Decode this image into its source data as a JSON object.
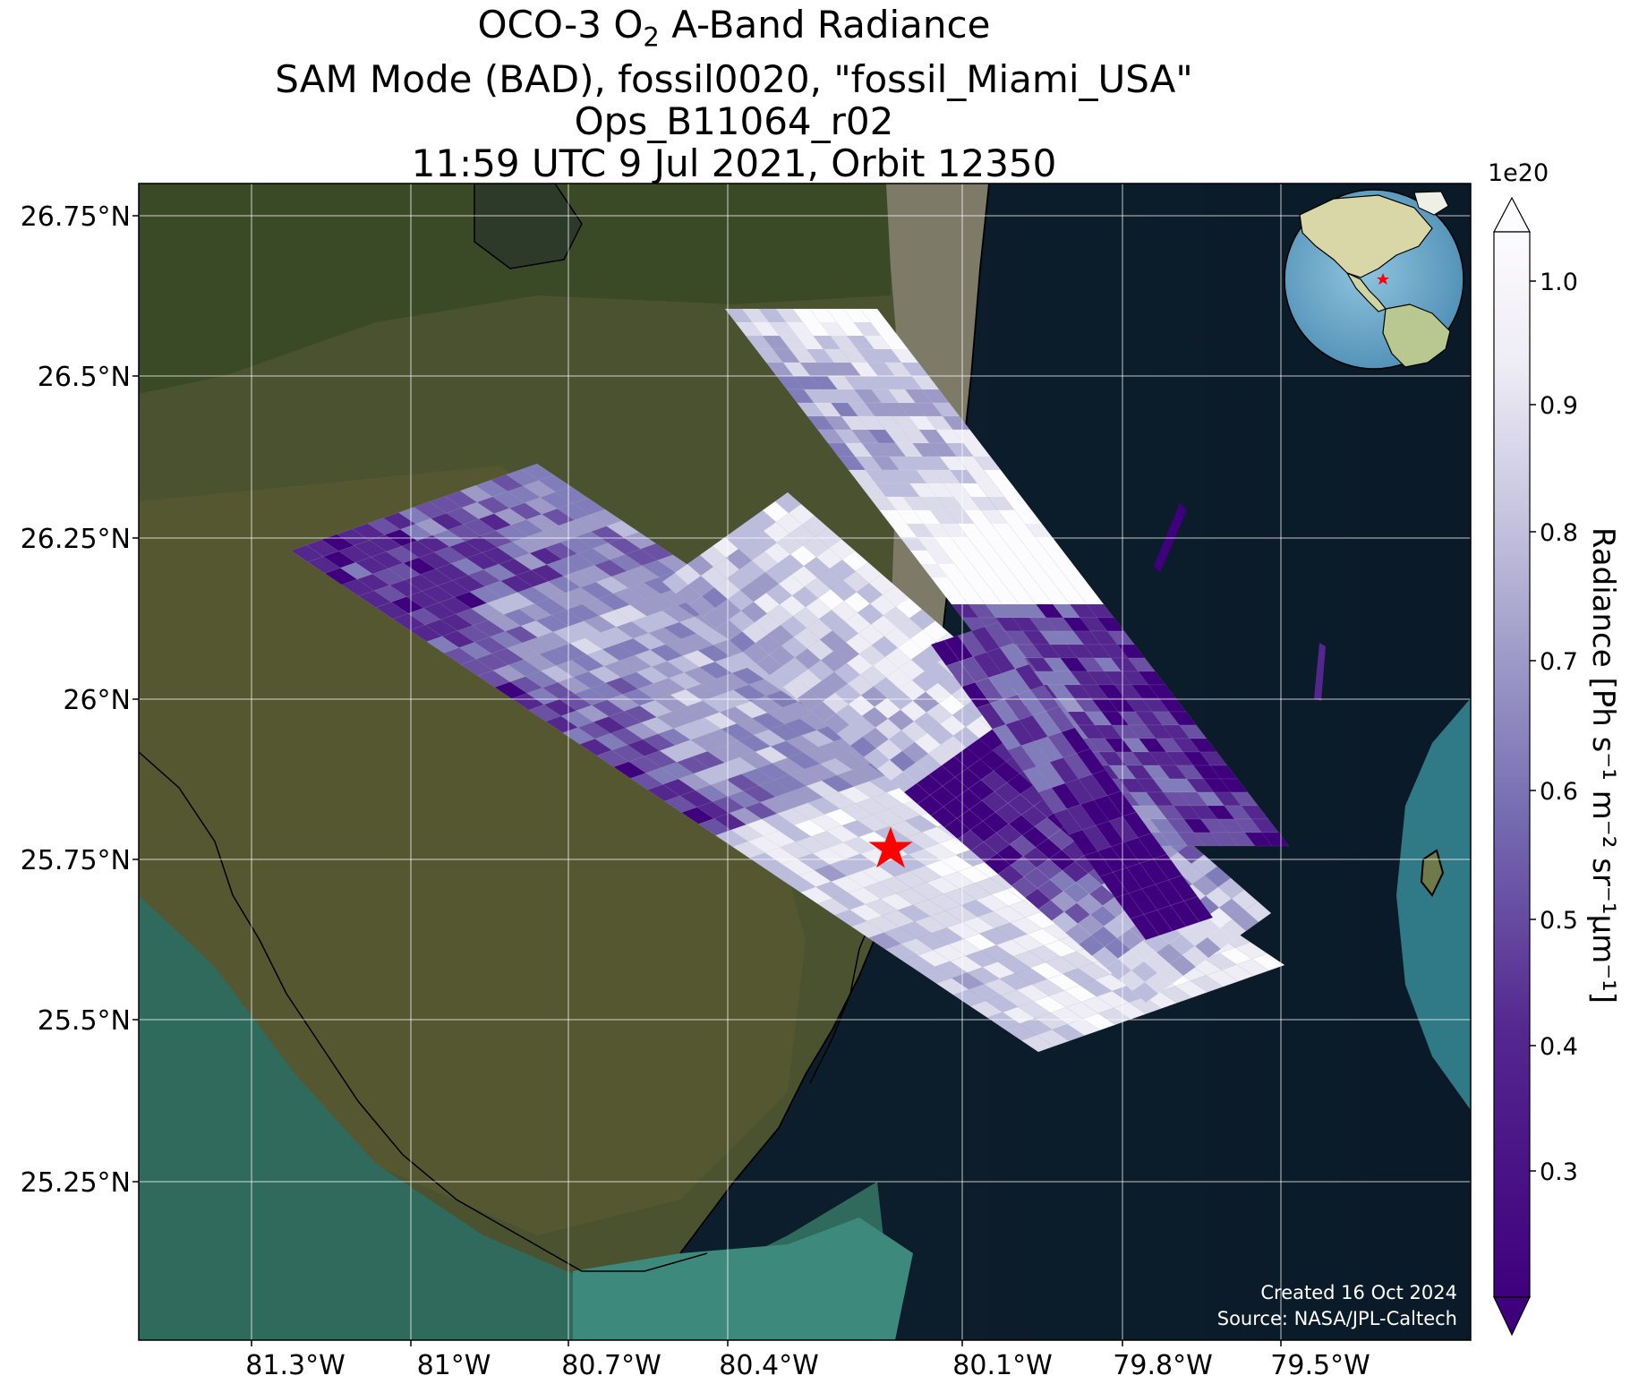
{
  "title": {
    "line1_prefix": "OCO-3 O",
    "line1_sub": "2",
    "line1_suffix": " A-Band Radiance",
    "line2": "SAM Mode (BAD), fossil0020, \"fossil_Miami_USA\"",
    "line3": "Ops_B11064_r02",
    "line4": "11:59 UTC 9 Jul 2021, Orbit 12350"
  },
  "map": {
    "lat_ticks": [
      "26.75°N",
      "26.5°N",
      "26.25°N",
      "26°N",
      "25.75°N",
      "25.5°N",
      "25.25°N"
    ],
    "lon_ticks": [
      "81.3°W",
      "81°W",
      "80.7°W",
      "80.4°W",
      "80.1°W",
      "79.8°W",
      "79.5°W"
    ],
    "target_marker": "red-star",
    "inset": "globe-locator",
    "credits": {
      "created": "Created 16 Oct 2024",
      "source": "Source: NASA/JPL-Caltech"
    }
  },
  "colorbar": {
    "label": "Radiance [Ph s⁻¹ m⁻² sr⁻¹μm⁻¹]",
    "exponent": "1e20",
    "ticks": [
      "1.0",
      "0.9",
      "0.8",
      "0.7",
      "0.6",
      "0.5",
      "0.4",
      "0.3"
    ],
    "colors": {
      "high": "#fcfbfd",
      "mid": "#9e9ac8",
      "low": "#3f007d"
    }
  }
}
